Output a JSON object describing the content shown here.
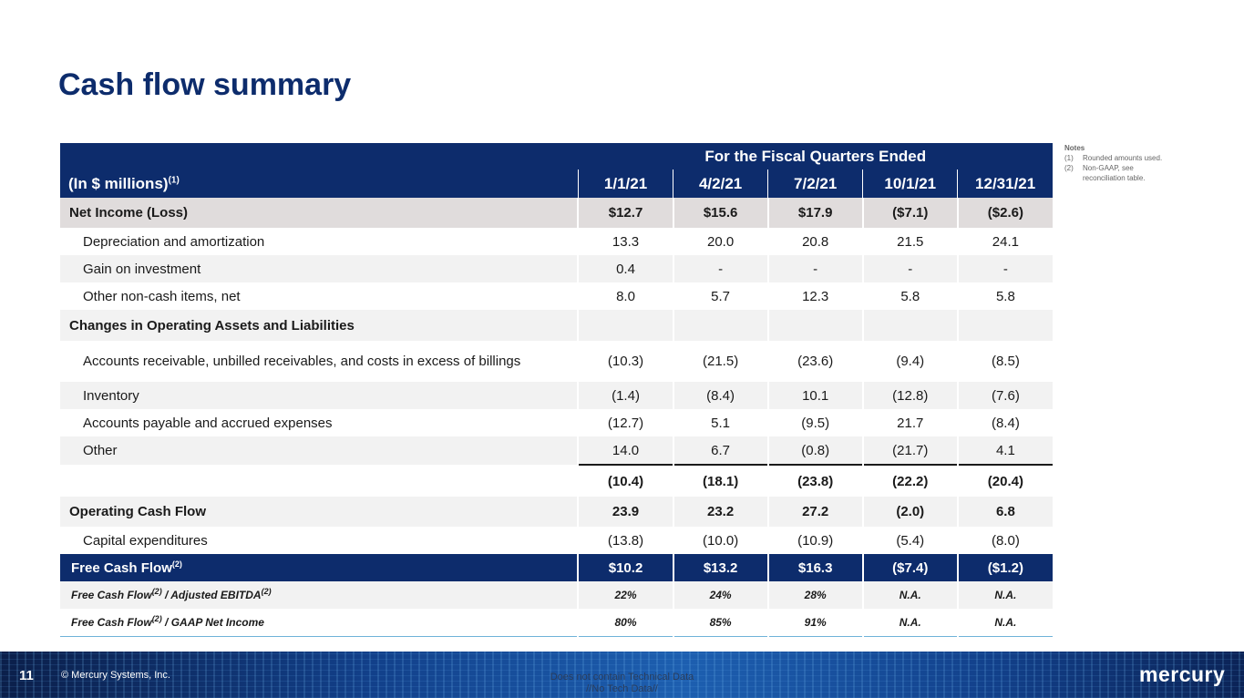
{
  "title": "Cash flow summary",
  "table": {
    "group_header": "For the Fiscal Quarters Ended",
    "label_header": "(In $ millions)",
    "label_header_sup": "(1)",
    "quarters": [
      "1/1/21",
      "4/2/21",
      "7/2/21",
      "10/1/21",
      "12/31/21"
    ],
    "rows": [
      {
        "label": "Net Income (Loss)",
        "values": [
          "$12.7",
          "$15.6",
          "$17.9",
          "($7.1)",
          "($2.6)"
        ]
      },
      {
        "label": "Depreciation and amortization",
        "values": [
          "13.3",
          "20.0",
          "20.8",
          "21.5",
          "24.1"
        ]
      },
      {
        "label": "Gain on investment",
        "values": [
          "0.4",
          "-",
          "-",
          "-",
          "-"
        ]
      },
      {
        "label": "Other non-cash items, net",
        "values": [
          "8.0",
          "5.7",
          "12.3",
          "5.8",
          "5.8"
        ]
      },
      {
        "label": "Changes in Operating Assets and Liabilities",
        "values": [
          "",
          "",
          "",
          "",
          ""
        ]
      },
      {
        "label": "Accounts receivable, unbilled receivables, and costs in excess of billings",
        "values": [
          "(10.3)",
          "(21.5)",
          "(23.6)",
          "(9.4)",
          "(8.5)"
        ]
      },
      {
        "label": "Inventory",
        "values": [
          "(1.4)",
          "(8.4)",
          "10.1",
          "(12.8)",
          "(7.6)"
        ]
      },
      {
        "label": "Accounts payable and accrued expenses",
        "values": [
          "(12.7)",
          "5.1",
          "(9.5)",
          "21.7",
          "(8.4)"
        ]
      },
      {
        "label": "Other",
        "values": [
          "14.0",
          "6.7",
          "(0.8)",
          "(21.7)",
          "4.1"
        ]
      },
      {
        "label": "",
        "values": [
          "(10.4)",
          "(18.1)",
          "(23.8)",
          "(22.2)",
          "(20.4)"
        ]
      },
      {
        "label": "Operating Cash Flow",
        "values": [
          "23.9",
          "23.2",
          "27.2",
          "(2.0)",
          "6.8"
        ]
      },
      {
        "label": "Capital expenditures",
        "values": [
          "(13.8)",
          "(10.0)",
          "(10.9)",
          "(5.4)",
          "(8.0)"
        ]
      },
      {
        "label": "Free Cash Flow",
        "label_sup": "(2)",
        "values": [
          "$10.2",
          "$13.2",
          "$16.3",
          "($7.4)",
          "($1.2)"
        ]
      },
      {
        "label_a": "Free Cash Flow",
        "label_sup_a": "(2)",
        "label_b": " / Adjusted EBITDA",
        "label_sup_b": "(2)",
        "values": [
          "22%",
          "24%",
          "28%",
          "N.A.",
          "N.A."
        ]
      },
      {
        "label_a": "Free Cash Flow",
        "label_sup_a": "(2)",
        "label_b": " / GAAP Net Income",
        "values": [
          "80%",
          "85%",
          "91%",
          "N.A.",
          "N.A."
        ]
      }
    ]
  },
  "notes": {
    "heading": "Notes",
    "items": [
      {
        "num": "(1)",
        "text": "Rounded amounts used."
      },
      {
        "num": "(2)",
        "text": "Non-GAAP, see reconciliation table."
      }
    ]
  },
  "footer": {
    "page_number": "11",
    "copyright": "© Mercury Systems, Inc.",
    "disclaimer_line1": "Does not contain Technical Data",
    "disclaimer_line2": "//No Tech Data//",
    "logo_text": "mercury"
  }
}
